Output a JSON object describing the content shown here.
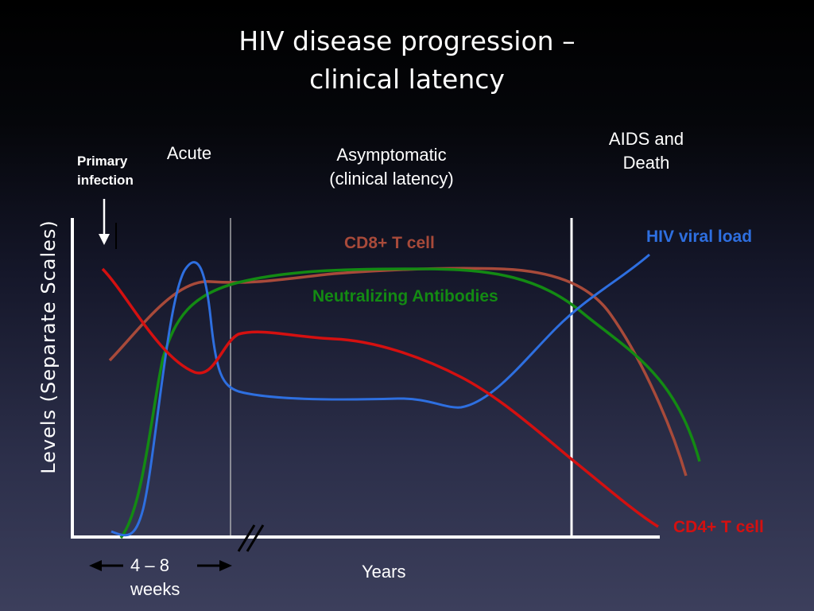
{
  "title": {
    "line1": "HIV disease progression –",
    "line2": "clinical latency"
  },
  "phases": {
    "primary_line1": "Primary",
    "primary_line2": "infection",
    "acute": "Acute",
    "asymptomatic_line1": "Asymptomatic",
    "asymptomatic_line2": "(clinical latency)",
    "aids_line1": "AIDS and",
    "aids_line2": "Death"
  },
  "axes": {
    "y_label": "Levels (Separate Scales)",
    "x_label": "Years",
    "duration_line1": "4 – 8",
    "duration_line2": "weeks"
  },
  "curves": {
    "hiv_viral_load": {
      "label": "HIV viral load",
      "color": "#2e6fe0"
    },
    "cd8_t_cell": {
      "label": "CD8+ T cell",
      "color": "#a84a3a"
    },
    "neutralizing_antibodies": {
      "label": "Neutralizing Antibodies",
      "color": "#138a13"
    },
    "cd4_t_cell": {
      "label": "CD4+ T cell",
      "color": "#d41010"
    }
  }
}
